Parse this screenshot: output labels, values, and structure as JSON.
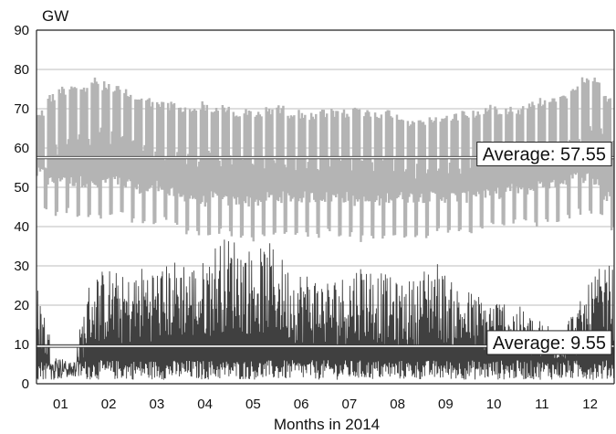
{
  "chart_data": {
    "type": "line",
    "title": "",
    "ylabel": "GW",
    "xlabel": "Months in 2014",
    "ylim": [
      0,
      90
    ],
    "yticks": [
      0,
      10,
      20,
      30,
      40,
      50,
      60,
      70,
      80,
      90
    ],
    "ytick_labels": [
      "0",
      "10",
      "20",
      "30",
      "40",
      "50",
      "60",
      "70",
      "80",
      "90"
    ],
    "x_categories": [
      "01",
      "02",
      "03",
      "04",
      "05",
      "06",
      "07",
      "08",
      "09",
      "10",
      "11",
      "12"
    ],
    "grid": "horizontal",
    "legend": "none",
    "colors": {
      "upper_series": "#b4b4b4",
      "lower_series": "#404040",
      "average_line": "#ffffff",
      "grid": "#bdbdbd",
      "axis": "#222222"
    },
    "series": [
      {
        "weekly_max": [
          70,
          74,
          76,
          77,
          76,
          78,
          77,
          76,
          75,
          74,
          73,
          72,
          72,
          71,
          71,
          72,
          71,
          71,
          70,
          70,
          70,
          71,
          71,
          70,
          70,
          69,
          70,
          70,
          70,
          71,
          70,
          70,
          70,
          69,
          68,
          68,
          68,
          69,
          69,
          70,
          70,
          71,
          71,
          71,
          71,
          72,
          73,
          74,
          75,
          77,
          78,
          78,
          74
        ],
        "weekly_min": [
          44,
          42,
          43,
          42,
          42,
          41,
          42,
          42,
          41,
          40,
          40,
          41,
          39,
          38,
          37,
          36,
          38,
          37,
          37,
          36,
          36,
          37,
          37,
          37,
          37,
          37,
          38,
          37,
          37,
          36,
          36,
          36,
          37,
          37,
          37,
          37,
          38,
          38,
          38,
          38,
          39,
          39,
          39,
          40,
          40,
          40,
          41,
          41,
          42,
          43,
          43,
          42,
          38
        ],
        "weekday_trough": [
          52,
          50,
          51,
          50,
          50,
          49,
          50,
          50,
          49,
          48,
          48,
          49,
          47,
          46,
          46,
          45,
          46,
          45,
          45,
          45,
          45,
          46,
          46,
          46,
          46,
          46,
          46,
          46,
          46,
          45,
          45,
          45,
          46,
          46,
          46,
          46,
          46,
          46,
          46,
          46,
          47,
          47,
          47,
          48,
          48,
          48,
          49,
          49,
          50,
          51,
          51,
          50,
          46
        ]
      },
      {
        "daily_peaks": [
          27,
          8,
          5,
          28,
          30,
          27,
          31,
          30,
          33,
          30,
          37,
          38,
          34,
          36,
          30,
          29,
          27,
          28,
          32,
          29,
          26,
          27,
          33,
          26,
          24,
          22,
          22,
          19,
          16,
          16,
          20,
          29,
          31
        ],
        "typical_range": [
          1,
          22
        ]
      }
    ],
    "annotations": [
      {
        "text": "Average: 57.55",
        "y": 57.55
      },
      {
        "text": "Average: 9.55",
        "y": 9.55
      }
    ]
  }
}
